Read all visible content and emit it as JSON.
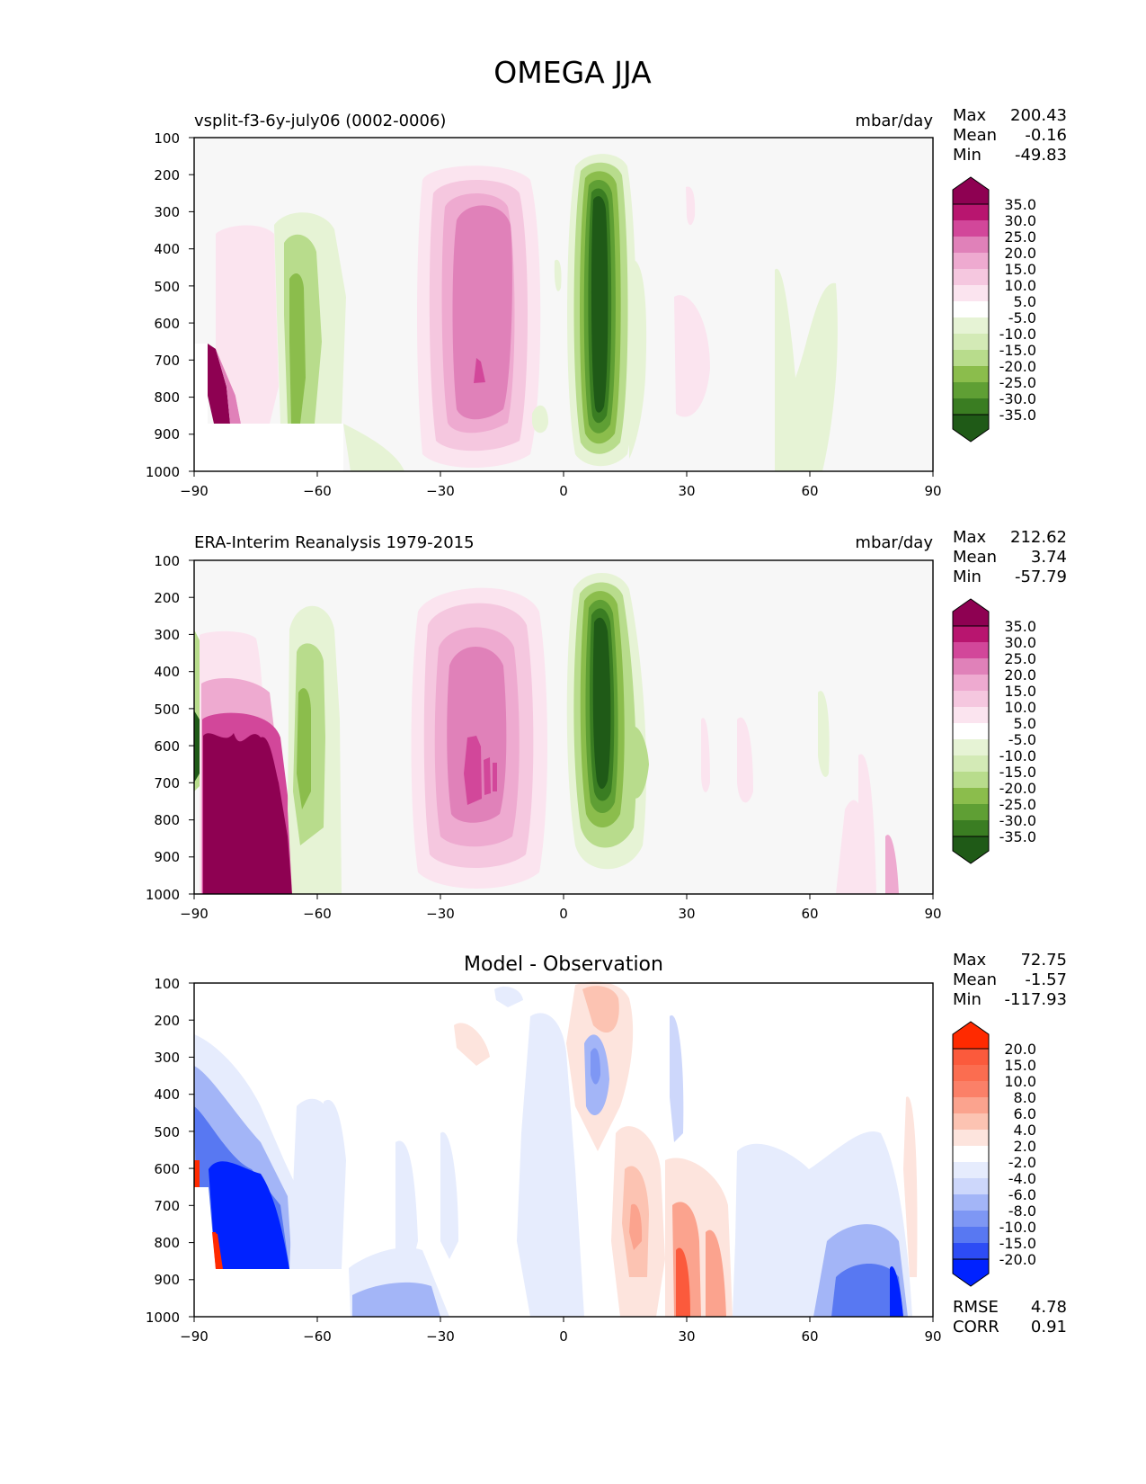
{
  "figure_title": "OMEGA JJA",
  "colors": {
    "green_5": "#1f5a17",
    "green_4": "#3a7d22",
    "green_3": "#5f9f34",
    "green_2": "#8bbd4c",
    "green_1": "#b8dc8c",
    "green_0": "#e6f3d5",
    "white": "#f7f7f7",
    "pink_0": "#fbe4ef",
    "pink_1": "#f5c7df",
    "pink_2": "#eeaad0",
    "pink_3": "#e081b9",
    "pink_4": "#d2479a",
    "pink_5": "#b8156f",
    "pink_6": "#8e0152",
    "blue_6": "#0022ff",
    "blue_5": "#2d4cf5",
    "blue_4": "#5878f2",
    "blue_3": "#7e97f4",
    "blue_2": "#a3b5f7",
    "blue_1": "#cdd7fb",
    "blue_0": "#e6ecfd",
    "red_0": "#fde4dd",
    "red_1": "#fcc3b2",
    "red_2": "#fba38e",
    "red_3": "#fb8068",
    "red_4": "#fb5a3c",
    "red_5": "#ff2a00"
  },
  "chart_data": [
    {
      "type": "heatmap",
      "title": "vsplit-f3-6y-july06 (0002-0006)",
      "units": "mbar/day",
      "xlim": [
        -90,
        90
      ],
      "ylim": [
        1000,
        100
      ],
      "x_ticks": [
        "−90",
        "−60",
        "−30",
        "0",
        "30",
        "60",
        "90"
      ],
      "y_ticks": [
        "100",
        "200",
        "300",
        "400",
        "500",
        "600",
        "700",
        "800",
        "900",
        "1000"
      ],
      "stats": {
        "max_label": "Max",
        "max": "200.43",
        "mean_label": "Mean",
        "mean": "-0.16",
        "min_label": "Min",
        "min": "-49.83"
      },
      "colorbar_labels": [
        "35.0",
        "30.0",
        "25.0",
        "20.0",
        "15.0",
        "10.0",
        "5.0",
        "-5.0",
        "-10.0",
        "-15.0",
        "-20.0",
        "-25.0",
        "-30.0",
        "-35.0"
      ]
    },
    {
      "type": "heatmap",
      "title": "ERA-Interim Reanalysis 1979-2015",
      "units": "mbar/day",
      "xlim": [
        -90,
        90
      ],
      "ylim": [
        1000,
        100
      ],
      "x_ticks": [
        "−90",
        "−60",
        "−30",
        "0",
        "30",
        "60",
        "90"
      ],
      "y_ticks": [
        "100",
        "200",
        "300",
        "400",
        "500",
        "600",
        "700",
        "800",
        "900",
        "1000"
      ],
      "stats": {
        "max_label": "Max",
        "max": "212.62",
        "mean_label": "Mean",
        "mean": "3.74",
        "min_label": "Min",
        "min": "-57.79"
      },
      "colorbar_labels": [
        "35.0",
        "30.0",
        "25.0",
        "20.0",
        "15.0",
        "10.0",
        "5.0",
        "-5.0",
        "-10.0",
        "-15.0",
        "-20.0",
        "-25.0",
        "-30.0",
        "-35.0"
      ]
    },
    {
      "type": "heatmap",
      "title": "Model - Observation",
      "xlim": [
        -90,
        90
      ],
      "ylim": [
        1000,
        100
      ],
      "x_ticks": [
        "−90",
        "−60",
        "−30",
        "0",
        "30",
        "60",
        "90"
      ],
      "y_ticks": [
        "100",
        "200",
        "300",
        "400",
        "500",
        "600",
        "700",
        "800",
        "900",
        "1000"
      ],
      "stats": {
        "max_label": "Max",
        "max": "72.75",
        "mean_label": "Mean",
        "mean": "-1.57",
        "min_label": "Min",
        "min": "-117.93"
      },
      "colorbar_labels": [
        "20.0",
        "15.0",
        "10.0",
        "8.0",
        "6.0",
        "4.0",
        "2.0",
        "-2.0",
        "-4.0",
        "-6.0",
        "-8.0",
        "-10.0",
        "-15.0",
        "-20.0"
      ],
      "rmse_label": "RMSE",
      "rmse": "4.78",
      "corr_label": "CORR",
      "corr": "0.91"
    }
  ]
}
